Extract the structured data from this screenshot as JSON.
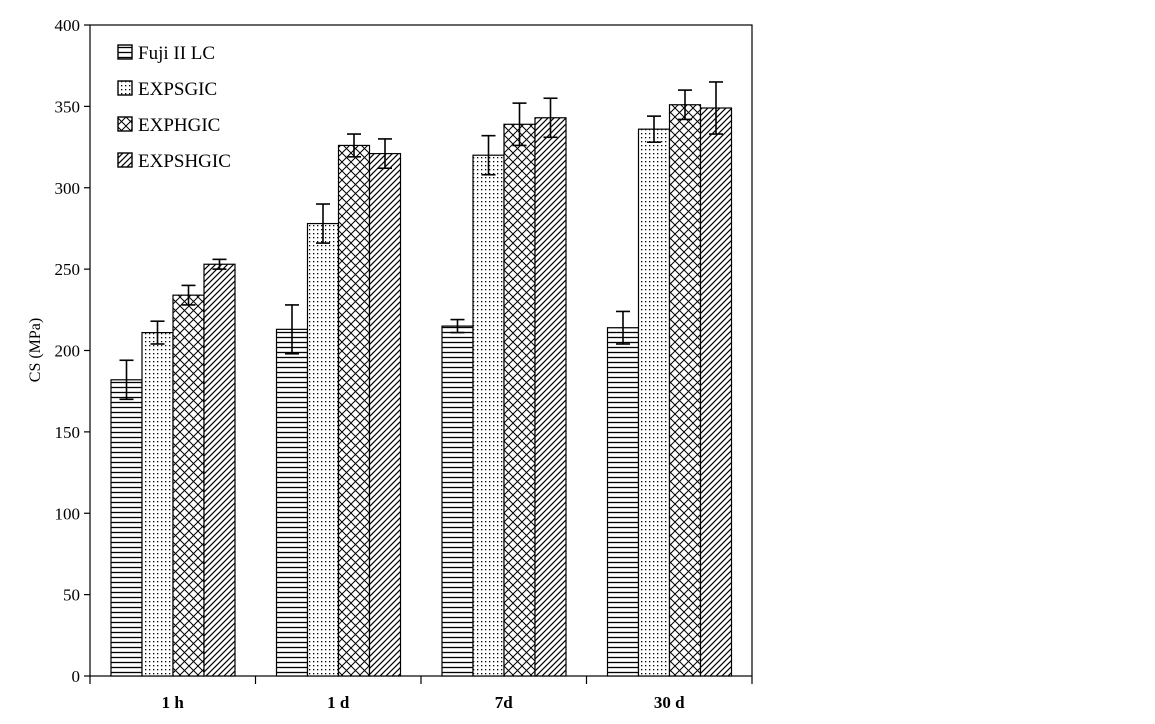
{
  "chart_data": {
    "type": "bar",
    "title": "",
    "xlabel": "",
    "ylabel": "CS (MPa)",
    "ylim": [
      0,
      400
    ],
    "yticks": [
      0,
      50,
      100,
      150,
      200,
      250,
      300,
      350,
      400
    ],
    "grid": false,
    "legend_position": "top-left",
    "categories": [
      "1 h",
      "1 d",
      "7d",
      "30 d"
    ],
    "series": [
      {
        "name": "Fuji II LC",
        "pattern": "horizontal-lines",
        "values": [
          182,
          213,
          215,
          214
        ],
        "errors": [
          12,
          15,
          4,
          10
        ]
      },
      {
        "name": "EXPSGIC",
        "pattern": "dots",
        "values": [
          211,
          278,
          320,
          336
        ],
        "errors": [
          7,
          12,
          12,
          8
        ]
      },
      {
        "name": "EXPHGIC",
        "pattern": "crosshatch",
        "values": [
          234,
          326,
          339,
          351
        ],
        "errors": [
          6,
          7,
          13,
          9
        ]
      },
      {
        "name": "EXPSHGIC",
        "pattern": "diagonal-lines",
        "values": [
          253,
          321,
          343,
          349
        ],
        "errors": [
          3,
          9,
          12,
          16
        ]
      }
    ],
    "colors": {
      "ink": "#000000",
      "background": "#ffffff"
    }
  }
}
